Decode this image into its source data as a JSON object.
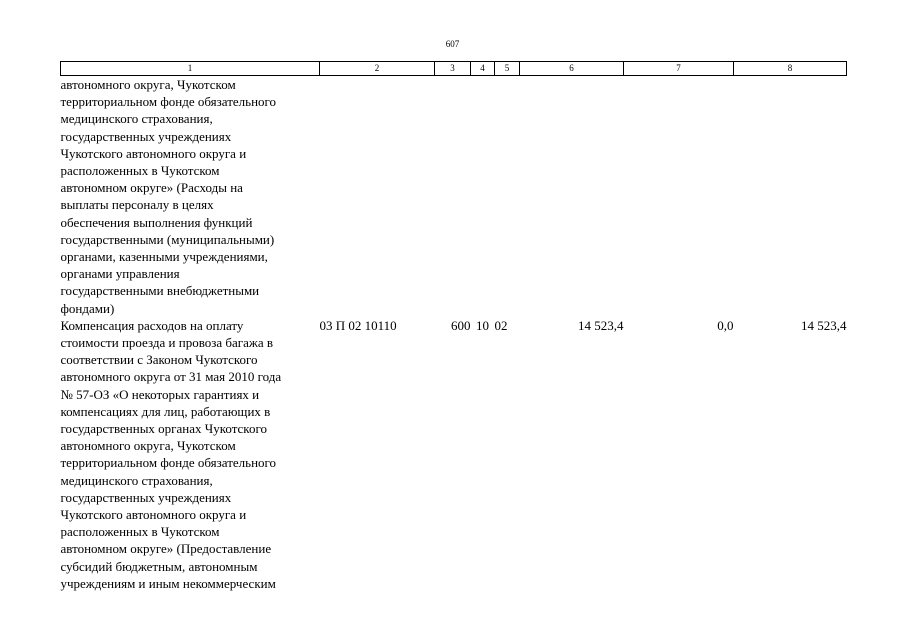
{
  "page_number": "607",
  "columns": [
    "1",
    "2",
    "3",
    "4",
    "5",
    "6",
    "7",
    "8"
  ],
  "rows": [
    {
      "description_lines": [
        "автономного округа, Чукотском",
        "территориальном фонде обязательного",
        "медицинского страхования,",
        "государственных учреждениях",
        "Чукотского автономного округа и",
        "расположенных в Чукотском",
        "автономном округе» (Расходы на",
        "выплаты персоналу в целях",
        "обеспечения выполнения функций",
        "государственными (муниципальными)",
        "органами, казенными учреждениями,",
        "органами управления",
        "государственными внебюджетными",
        "фондами)"
      ],
      "code": "",
      "type": "",
      "section": "",
      "subsection": "",
      "amount1": "",
      "amount2": "",
      "amount3": ""
    },
    {
      "description_lines": [
        "Компенсация расходов на оплату",
        "стоимости проезда и провоза багажа в",
        "соответствии с Законом Чукотского",
        "автономного округа от 31 мая 2010 года",
        "№ 57-ОЗ «О некоторых гарантиях и",
        "компенсациях для лиц, работающих в",
        "государственных органах Чукотского",
        "автономного округа, Чукотском",
        "территориальном фонде обязательного",
        "медицинского страхования,",
        "государственных учреждениях",
        "Чукотского автономного округа и",
        "расположенных в Чукотском",
        "автономном округе» (Предоставление",
        "субсидий бюджетным, автономным",
        "учреждениям и иным некоммерческим"
      ],
      "code": "03 П 02 10110",
      "type": "600",
      "section": "10",
      "subsection": "02",
      "amount1": "14 523,4",
      "amount2": "0,0",
      "amount3": "14 523,4"
    }
  ]
}
